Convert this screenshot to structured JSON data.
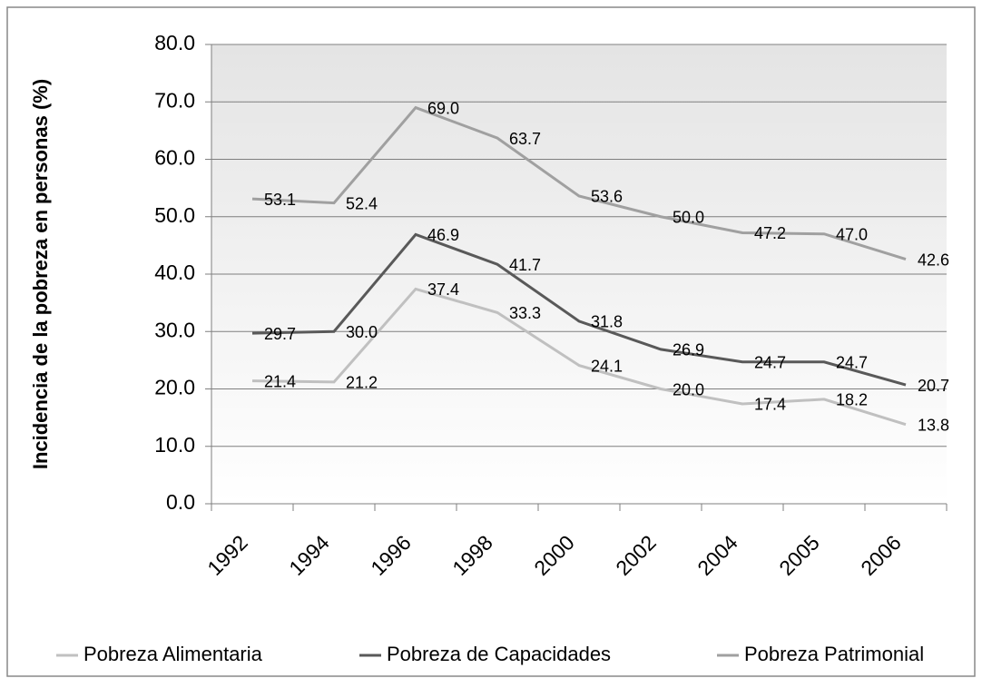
{
  "chart_data": {
    "type": "line",
    "y_label": "Incidencia de la pobreza en personas (%)",
    "categories": [
      "1992",
      "1994",
      "1996",
      "1998",
      "2000",
      "2002",
      "2004",
      "2005",
      "2006"
    ],
    "series": [
      {
        "name": "Pobreza Alimentaria",
        "color": "#c0c0c0",
        "values": [
          21.4,
          21.2,
          37.4,
          33.3,
          24.1,
          20.0,
          17.4,
          18.2,
          13.8
        ],
        "value_labels": [
          "21.4",
          "21.2",
          "37.4",
          "33.3",
          "24.1",
          "20.0",
          "17.4",
          "18.2",
          "13.8"
        ]
      },
      {
        "name": "Pobreza de Capacidades",
        "color": "#595959",
        "values": [
          29.7,
          30.0,
          46.9,
          41.7,
          31.8,
          26.9,
          24.7,
          24.7,
          20.7
        ],
        "value_labels": [
          "29.7",
          "30.0",
          "46.9",
          "41.7",
          "31.8",
          "26.9",
          "24.7",
          "24.7",
          "20.7"
        ]
      },
      {
        "name": "Pobreza Patrimonial",
        "color": "#a0a0a0",
        "values": [
          53.1,
          52.4,
          69.0,
          63.7,
          53.6,
          50.0,
          47.2,
          47.0,
          42.6
        ],
        "value_labels": [
          "53.1",
          "52.4",
          "69.0",
          "63.7",
          "53.6",
          "50.0",
          "47.2",
          "47.0",
          "42.6"
        ]
      }
    ],
    "ylim": [
      0,
      80
    ],
    "yticks": [
      {
        "value": 0,
        "label": "0.0"
      },
      {
        "value": 10,
        "label": "10.0"
      },
      {
        "value": 20,
        "label": "20.0"
      },
      {
        "value": 30,
        "label": "30.0"
      },
      {
        "value": 40,
        "label": "40.0"
      },
      {
        "value": 50,
        "label": "50.0"
      },
      {
        "value": 60,
        "label": "60.0"
      },
      {
        "value": 70,
        "label": "70.0"
      },
      {
        "value": 80,
        "label": "80.0"
      }
    ],
    "grid": true,
    "legend": "bottom"
  }
}
